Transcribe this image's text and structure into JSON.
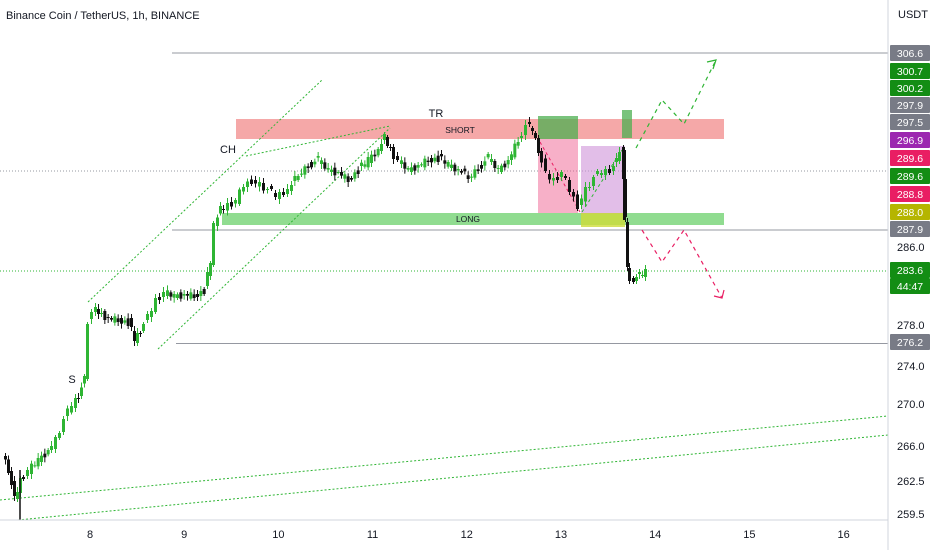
{
  "header": {
    "title": "Binance Coin / TetherUS, 1h, BINANCE"
  },
  "chart_data": {
    "type": "candlestick",
    "y_unit": "USDT",
    "ylim": [
      258.5,
      309.5
    ],
    "x_ticks": [
      "8",
      "9",
      "10",
      "11",
      "12",
      "13",
      "14",
      "15",
      "16"
    ],
    "y_ticks": [
      259.5,
      262.5,
      266.0,
      270.0,
      274.0,
      278.0,
      286.0
    ],
    "price_badges": [
      {
        "label": "306.6",
        "value": 306.6,
        "color": "#787b86"
      },
      {
        "label": "300.7",
        "value": 300.7,
        "color": "#138d14"
      },
      {
        "label": "300.2",
        "value": 300.2,
        "color": "#138d14"
      },
      {
        "label": "297.9",
        "value": 297.9,
        "color": "#787b86"
      },
      {
        "label": "297.5",
        "value": 297.5,
        "color": "#787b86"
      },
      {
        "label": "296.9",
        "value": 296.9,
        "color": "#9c27b0"
      },
      {
        "label": "289.6",
        "value": 289.6,
        "color": "#e91e63"
      },
      {
        "label": "289.6",
        "value": 289.6,
        "color": "#138d14"
      },
      {
        "label": "288.8",
        "value": 288.8,
        "color": "#e91e63"
      },
      {
        "label": "288.0",
        "value": 288.0,
        "color": "#b5b500"
      },
      {
        "label": "287.9",
        "value": 287.9,
        "color": "#787b86"
      },
      {
        "label": "283.6",
        "value": 283.6,
        "color": "#138d14"
      },
      {
        "label": "44:47",
        "value": 282.0,
        "color": "#138d14"
      },
      {
        "label": "276.2",
        "value": 276.2,
        "color": "#787b86"
      }
    ],
    "annotations": {
      "short_label": "SHORT",
      "long_label": "LONG",
      "tr_label": "TR",
      "ch_label": "CH",
      "s_label": "S"
    },
    "levels": [
      306.6,
      287.9,
      276.2
    ],
    "dotted_levels": [
      289.6,
      283.6
    ],
    "colors": {
      "up": "#22ab94",
      "candle_up": "#2fb534",
      "candle_down": "#111111",
      "short_zone": "#f28b8b",
      "long_zone": "#7dd67d",
      "bullish_arrow": "#2fb534",
      "bearish_arrow": "#e91e63"
    }
  }
}
